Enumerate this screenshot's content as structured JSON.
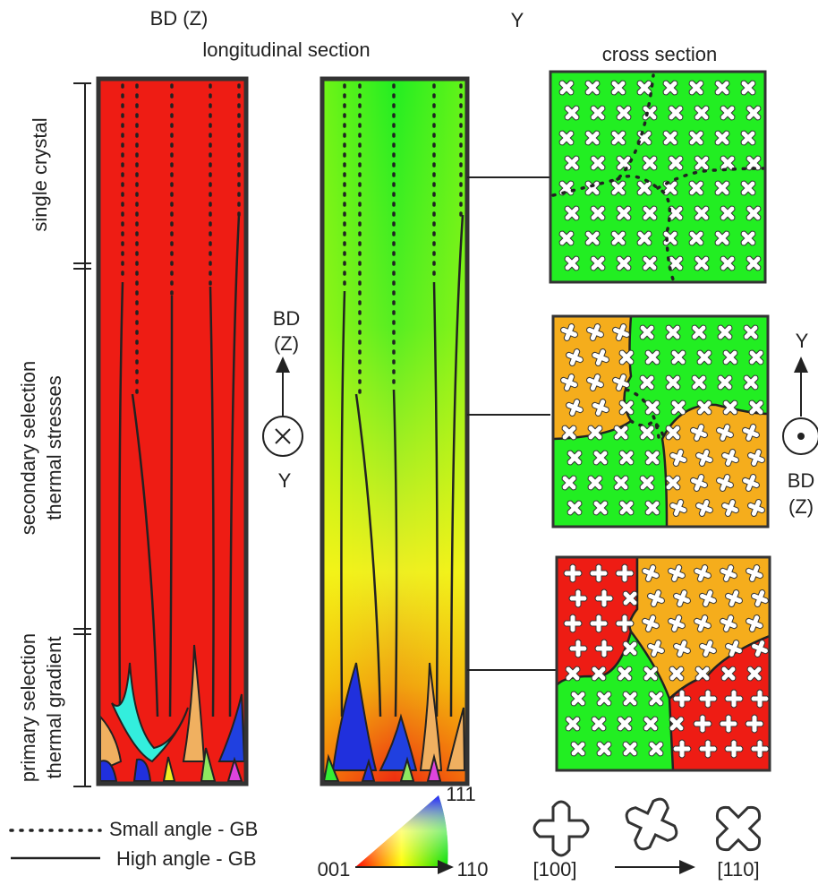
{
  "header": {
    "left_axis": "BD (Z)",
    "section_title": "longitudinal section",
    "y_label": "Y",
    "cross_title": "cross section"
  },
  "zones": [
    {
      "lines": [
        "single crystal"
      ]
    },
    {
      "lines": [
        "secondary selection",
        "thermal stresses"
      ]
    },
    {
      "lines": [
        "primary selection",
        "thermal gradient"
      ]
    }
  ],
  "center_axes": {
    "up": [
      "BD",
      "(Z)"
    ],
    "into": "Y"
  },
  "right_axes": {
    "up": "Y",
    "out": [
      "BD",
      "(Z)"
    ]
  },
  "legend": {
    "small": "Small angle - GB",
    "high": "High angle - GB"
  },
  "ipf": {
    "top": "111",
    "left": "001",
    "right": "110"
  },
  "orientation": {
    "from": "[100]",
    "to": "[110]"
  }
}
